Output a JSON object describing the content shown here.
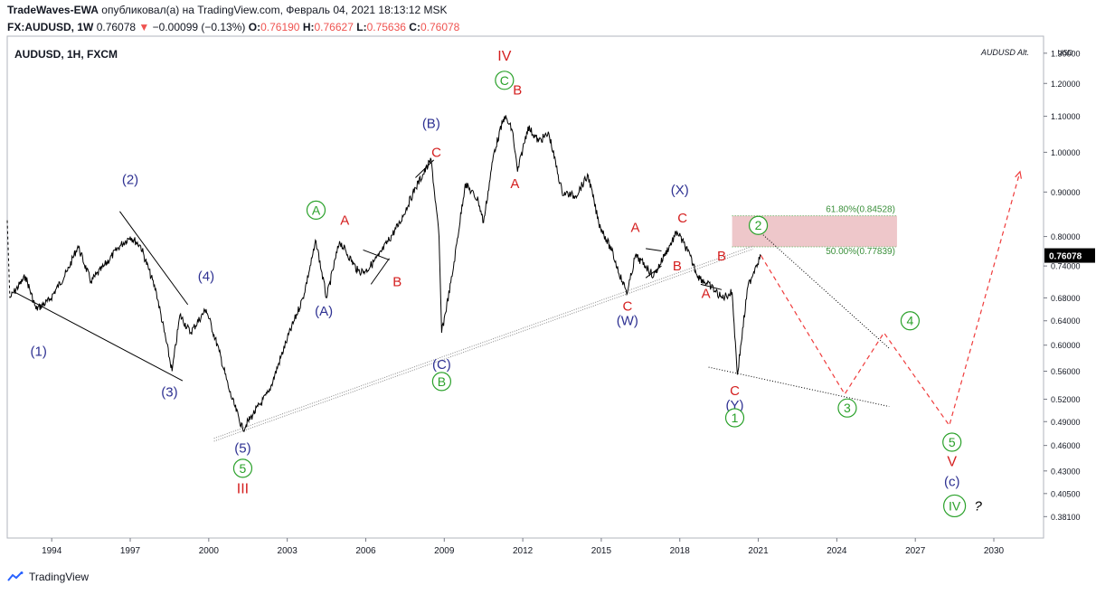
{
  "header": {
    "author": "TradeWaves-EWA",
    "published_text": "опубликовал(а) на TradingView.com, Февраль 04, 2021 18:13:12 MSK",
    "symbol_full": "FX:AUDUSD, 1W",
    "last": "0.76078",
    "change": "−0.00099 (−0.13%)",
    "open_label": "O:",
    "open": "0.76190",
    "high_label": "H:",
    "high": "0.76627",
    "low_label": "L:",
    "low": "0.75636",
    "close_label": "C:",
    "close": "0.76078"
  },
  "footer": {
    "brand": "TradingView"
  },
  "colors": {
    "wave_red": "#d41e1e",
    "wave_blue": "#2e3192",
    "wave_green": "#2aa12a",
    "fib_green": "#4caf50",
    "projection": "#ef3b3b",
    "price": "#000000",
    "target_zone": "#e8b4b8",
    "price_badge": "#000000"
  },
  "chart_data": {
    "type": "line",
    "title": "AUDUSD, 1H, FXCM",
    "watermark": "AUDUSD Alt.",
    "y_unit": "USD",
    "y_scale": "log",
    "ylim": [
      0.36,
      1.36
    ],
    "xlim": [
      1992.3,
      2031.9
    ],
    "x_ticks": [
      "1994",
      "1997",
      "2000",
      "2003",
      "2006",
      "2009",
      "2012",
      "2015",
      "2018",
      "2021",
      "2024",
      "2027",
      "2030"
    ],
    "y_ticks": [
      "1.30000",
      "1.20000",
      "1.10000",
      "1.00000",
      "0.90000",
      "0.80000",
      "0.74000",
      "0.68000",
      "0.64000",
      "0.60000",
      "0.56000",
      "0.52000",
      "0.49000",
      "0.46000",
      "0.43000",
      "0.40500",
      "0.38100"
    ],
    "last_price": "0.76078",
    "series": [
      {
        "values": [
          [
            1992.4,
            0.68
          ],
          [
            1993.0,
            0.72
          ],
          [
            1993.4,
            0.66
          ],
          [
            1993.9,
            0.675
          ],
          [
            1994.6,
            0.73
          ],
          [
            1995.0,
            0.78
          ],
          [
            1995.5,
            0.71
          ],
          [
            1996.0,
            0.74
          ],
          [
            1996.6,
            0.78
          ],
          [
            1997.0,
            0.8
          ],
          [
            1997.4,
            0.78
          ],
          [
            1998.0,
            0.69
          ],
          [
            1998.6,
            0.56
          ],
          [
            1998.9,
            0.65
          ],
          [
            1999.3,
            0.62
          ],
          [
            1999.9,
            0.66
          ],
          [
            2000.4,
            0.59
          ],
          [
            2000.8,
            0.53
          ],
          [
            2001.3,
            0.48
          ],
          [
            2001.7,
            0.5
          ],
          [
            2002.3,
            0.53
          ],
          [
            2003.0,
            0.61
          ],
          [
            2003.6,
            0.68
          ],
          [
            2004.1,
            0.79
          ],
          [
            2004.5,
            0.68
          ],
          [
            2005.0,
            0.79
          ],
          [
            2005.7,
            0.73
          ],
          [
            2006.0,
            0.73
          ],
          [
            2006.5,
            0.76
          ],
          [
            2007.3,
            0.83
          ],
          [
            2007.9,
            0.91
          ],
          [
            2008.5,
            0.98
          ],
          [
            2008.8,
            0.8
          ],
          [
            2008.9,
            0.62
          ],
          [
            2009.3,
            0.72
          ],
          [
            2009.8,
            0.92
          ],
          [
            2010.3,
            0.88
          ],
          [
            2010.5,
            0.83
          ],
          [
            2010.9,
            1.0
          ],
          [
            2011.3,
            1.1
          ],
          [
            2011.6,
            1.06
          ],
          [
            2011.8,
            0.95
          ],
          [
            2012.2,
            1.07
          ],
          [
            2012.6,
            1.03
          ],
          [
            2013.0,
            1.05
          ],
          [
            2013.5,
            0.9
          ],
          [
            2014.0,
            0.89
          ],
          [
            2014.5,
            0.94
          ],
          [
            2014.9,
            0.83
          ],
          [
            2015.4,
            0.77
          ],
          [
            2015.8,
            0.71
          ],
          [
            2016.0,
            0.69
          ],
          [
            2016.3,
            0.76
          ],
          [
            2016.7,
            0.74
          ],
          [
            2017.0,
            0.72
          ],
          [
            2017.4,
            0.76
          ],
          [
            2017.9,
            0.81
          ],
          [
            2018.3,
            0.77
          ],
          [
            2018.7,
            0.72
          ],
          [
            2019.2,
            0.7
          ],
          [
            2019.6,
            0.68
          ],
          [
            2020.0,
            0.69
          ],
          [
            2020.2,
            0.555
          ],
          [
            2020.6,
            0.7
          ],
          [
            2020.9,
            0.74
          ],
          [
            2021.1,
            0.76078
          ]
        ]
      },
      {
        "name": "projection",
        "values": [
          [
            2021.1,
            0.76078
          ],
          [
            2024.3,
            0.527
          ],
          [
            2025.8,
            0.62
          ],
          [
            2028.3,
            0.485
          ],
          [
            2031.0,
            0.95
          ]
        ]
      }
    ],
    "fib_levels": [
      {
        "label": "61.80%(0.84528)",
        "value": 0.84528
      },
      {
        "label": "50.00%(0.77839)",
        "value": 0.77839
      }
    ],
    "target_zone": {
      "x": [
        2020.0,
        2026.3
      ],
      "y": [
        0.77839,
        0.84528
      ]
    },
    "trendlines": [
      {
        "style": "solid",
        "points": [
          [
            1992.6,
            0.69
          ],
          [
            1999.0,
            0.546
          ]
        ]
      },
      {
        "style": "solid",
        "points": [
          [
            1996.6,
            0.855
          ],
          [
            1999.2,
            0.668
          ]
        ]
      },
      {
        "style": "solid",
        "points": [
          [
            2007.9,
            0.935
          ],
          [
            2008.6,
            0.98
          ]
        ]
      },
      {
        "style": "solid",
        "points": [
          [
            2005.9,
            0.772
          ],
          [
            2006.9,
            0.752
          ]
        ]
      },
      {
        "style": "solid",
        "points": [
          [
            2006.2,
            0.705
          ],
          [
            2006.9,
            0.755
          ]
        ]
      },
      {
        "style": "solid",
        "points": [
          [
            2016.7,
            0.775
          ],
          [
            2017.3,
            0.77
          ]
        ]
      },
      {
        "style": "solid",
        "points": [
          [
            2016.7,
            0.717
          ],
          [
            2017.3,
            0.74
          ]
        ]
      },
      {
        "style": "solid",
        "points": [
          [
            2018.8,
            0.705
          ],
          [
            2019.6,
            0.695
          ]
        ]
      },
      {
        "style": "dotted",
        "points": [
          [
            2020.8,
            0.823
          ],
          [
            2026.0,
            0.595
          ]
        ]
      },
      {
        "style": "dotted",
        "points": [
          [
            2019.1,
            0.566
          ],
          [
            2026.0,
            0.51
          ]
        ]
      },
      {
        "style": "double-dotted",
        "points": [
          [
            2000.2,
            0.467
          ],
          [
            2020.8,
            0.777
          ]
        ]
      }
    ],
    "wave_labels": [
      {
        "text": "(1)",
        "color": "blue",
        "x": 1993.5,
        "y": 0.59
      },
      {
        "text": "(2)",
        "color": "blue",
        "x": 1997.0,
        "y": 0.93
      },
      {
        "text": "(3)",
        "color": "blue",
        "x": 1998.5,
        "y": 0.53
      },
      {
        "text": "(4)",
        "color": "blue",
        "x": 1999.9,
        "y": 0.72
      },
      {
        "text": "(5)",
        "color": "blue",
        "x": 2001.3,
        "y": 0.457
      },
      {
        "text": "5",
        "color": "green",
        "circle": true,
        "x": 2001.3,
        "y": 0.433
      },
      {
        "text": "III",
        "color": "red",
        "x": 2001.3,
        "y": 0.41
      },
      {
        "text": "A",
        "color": "green",
        "circle": true,
        "x": 2004.1,
        "y": 0.858
      },
      {
        "text": "A",
        "color": "red",
        "x": 2005.2,
        "y": 0.835
      },
      {
        "text": "(A)",
        "color": "blue",
        "x": 2004.4,
        "y": 0.657
      },
      {
        "text": "B",
        "color": "red",
        "x": 2007.2,
        "y": 0.71
      },
      {
        "text": "(B)",
        "color": "blue",
        "x": 2008.5,
        "y": 1.08
      },
      {
        "text": "C",
        "color": "red",
        "x": 2008.7,
        "y": 1.0
      },
      {
        "text": "(C)",
        "color": "blue",
        "x": 2008.9,
        "y": 0.57
      },
      {
        "text": "B",
        "color": "green",
        "circle": true,
        "x": 2008.9,
        "y": 0.545
      },
      {
        "text": "IV",
        "color": "red",
        "x": 2011.3,
        "y": 1.29
      },
      {
        "text": "C",
        "color": "green",
        "circle": true,
        "x": 2011.3,
        "y": 1.21
      },
      {
        "text": "B",
        "color": "red",
        "x": 2011.8,
        "y": 1.18
      },
      {
        "text": "A",
        "color": "red",
        "x": 2011.7,
        "y": 0.92
      },
      {
        "text": "A",
        "color": "red",
        "x": 2016.3,
        "y": 0.82
      },
      {
        "text": "C",
        "color": "red",
        "x": 2016.0,
        "y": 0.665
      },
      {
        "text": "(W)",
        "color": "blue",
        "x": 2016.0,
        "y": 0.64
      },
      {
        "text": "(X)",
        "color": "blue",
        "x": 2018.0,
        "y": 0.905
      },
      {
        "text": "C",
        "color": "red",
        "x": 2018.1,
        "y": 0.84
      },
      {
        "text": "B",
        "color": "red",
        "x": 2017.9,
        "y": 0.74
      },
      {
        "text": "A",
        "color": "red",
        "x": 2019.0,
        "y": 0.688
      },
      {
        "text": "B",
        "color": "red",
        "x": 2019.6,
        "y": 0.76
      },
      {
        "text": "C",
        "color": "red",
        "x": 2020.1,
        "y": 0.532
      },
      {
        "text": "(Y)",
        "color": "blue",
        "x": 2020.1,
        "y": 0.512
      },
      {
        "text": "1",
        "color": "green",
        "circle": true,
        "x": 2020.1,
        "y": 0.495
      },
      {
        "text": "2",
        "color": "green",
        "circle": true,
        "x": 2021.0,
        "y": 0.824
      },
      {
        "text": "3",
        "color": "green",
        "circle": true,
        "x": 2024.4,
        "y": 0.508
      },
      {
        "text": "4",
        "color": "green",
        "circle": true,
        "x": 2026.8,
        "y": 0.64
      },
      {
        "text": "5",
        "color": "green",
        "circle": true,
        "x": 2028.4,
        "y": 0.464
      },
      {
        "text": "V",
        "color": "red",
        "x": 2028.4,
        "y": 0.441
      },
      {
        "text": "(c)",
        "color": "blue",
        "x": 2028.4,
        "y": 0.418
      },
      {
        "text": "IV",
        "color": "green",
        "circle": true,
        "x": 2028.5,
        "y": 0.392
      },
      {
        "text": "?",
        "color": "black",
        "x": 2029.4,
        "y": 0.392
      }
    ]
  }
}
